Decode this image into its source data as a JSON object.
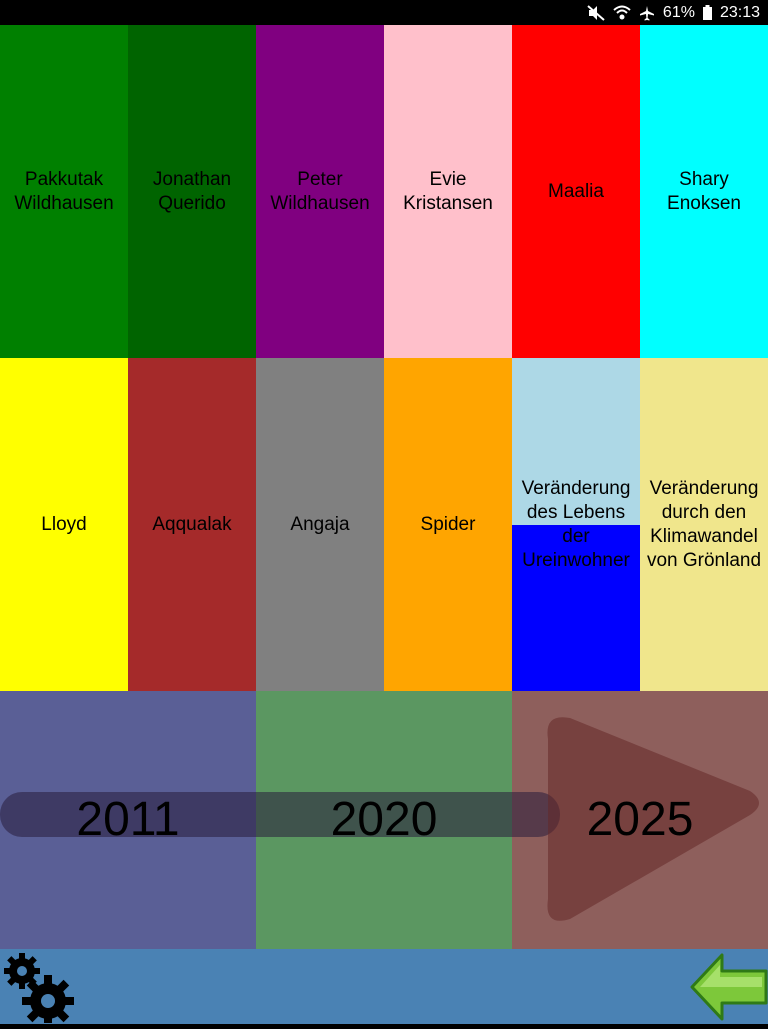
{
  "statusbar": {
    "battery": "61%",
    "time": "23:13",
    "icons": [
      "mute-icon",
      "wifi-icon",
      "airplane-icon",
      "battery-icon"
    ]
  },
  "grid": {
    "cells": [
      {
        "label": "Pakkutak\nWildhausen",
        "color": "#008000"
      },
      {
        "label": "Jonathan\nQuerido",
        "color": "#006400"
      },
      {
        "label": "Peter\nWildhausen",
        "color": "#800080"
      },
      {
        "label": "Evie\nKristansen",
        "color": "#FFC0CB"
      },
      {
        "label": "Maalia",
        "color": "#FF0000"
      },
      {
        "label": "Shary\nEnoksen",
        "color": "#00FFFF"
      },
      {
        "label": "Lloyd",
        "color": "#FFFF00"
      },
      {
        "label": "Aqqualak",
        "color": "#A52A2A"
      },
      {
        "label": "Angaja",
        "color": "#808080"
      },
      {
        "label": "Spider",
        "color": "#FFA500"
      },
      {
        "label": "Veränderung\ndes Lebens\nder\nUreinwohner",
        "color_top": "#ADD8E6",
        "color_bottom": "#0000FF"
      },
      {
        "label": "Veränderung\ndurch den\nKlimawandel\nvon Grönland",
        "color": "#F0E68C"
      }
    ]
  },
  "timeline": {
    "years": [
      "2011",
      "2020",
      "2025"
    ],
    "colors": [
      "#5a5f96",
      "#5b9761",
      "#8e5f5c"
    ]
  },
  "bottombar": {
    "settings_icon": "gears-icon",
    "back_icon": "back-arrow-icon"
  }
}
